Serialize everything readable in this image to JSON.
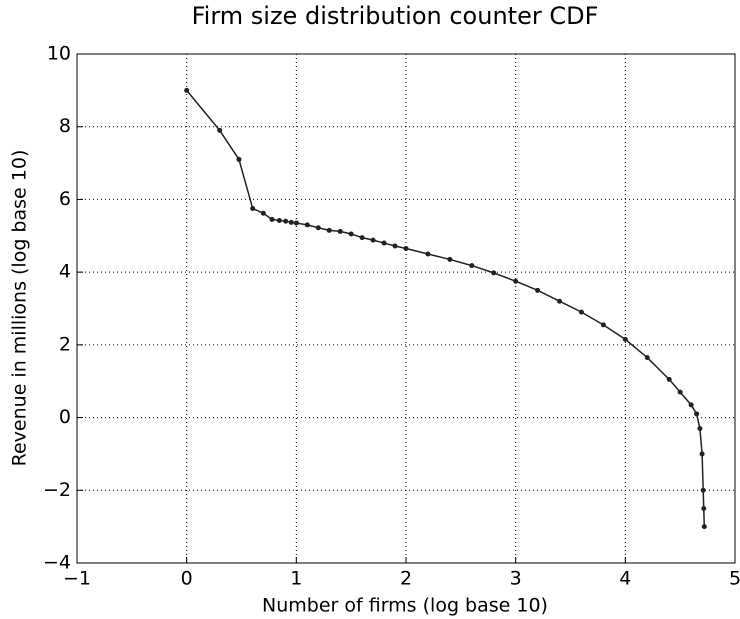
{
  "chart_data": {
    "type": "line",
    "title": "Firm size distribution counter CDF",
    "x_label": "Number of firms (log base 10)",
    "y_label": "Revenue in millions (log base 10)",
    "x": [
      0,
      0.301,
      0.477,
      0.602,
      0.699,
      0.778,
      0.845,
      0.903,
      0.954,
      1.0,
      1.1,
      1.2,
      1.3,
      1.4,
      1.5,
      1.6,
      1.7,
      1.8,
      1.9,
      2.0,
      2.2,
      2.4,
      2.6,
      2.8,
      3.0,
      3.2,
      3.4,
      3.6,
      3.8,
      4.0,
      4.2,
      4.4,
      4.5,
      4.6,
      4.65,
      4.68,
      4.7,
      4.71,
      4.715,
      4.72
    ],
    "series": [
      {
        "color": "#222222",
        "values": [
          9,
          7.9,
          7.1,
          5.75,
          5.62,
          5.45,
          5.42,
          5.4,
          5.37,
          5.35,
          5.3,
          5.22,
          5.15,
          5.12,
          5.05,
          4.95,
          4.88,
          4.8,
          4.72,
          4.65,
          4.5,
          4.35,
          4.18,
          3.98,
          3.75,
          3.5,
          3.2,
          2.9,
          2.55,
          2.15,
          1.65,
          1.05,
          0.7,
          0.35,
          0.1,
          -0.3,
          -1.0,
          -2.0,
          -2.5,
          -3.0
        ]
      }
    ],
    "xlim": [
      -1,
      5
    ],
    "ylim": [
      -4,
      10
    ],
    "xticks": [
      {
        "value": -1,
        "label": "−1"
      },
      0,
      1,
      2,
      3,
      4,
      5
    ],
    "yticks": [
      {
        "value": -4,
        "label": "−4"
      },
      {
        "value": -2,
        "label": "−2"
      },
      0,
      2,
      4,
      6,
      8,
      10
    ],
    "grid": true
  }
}
